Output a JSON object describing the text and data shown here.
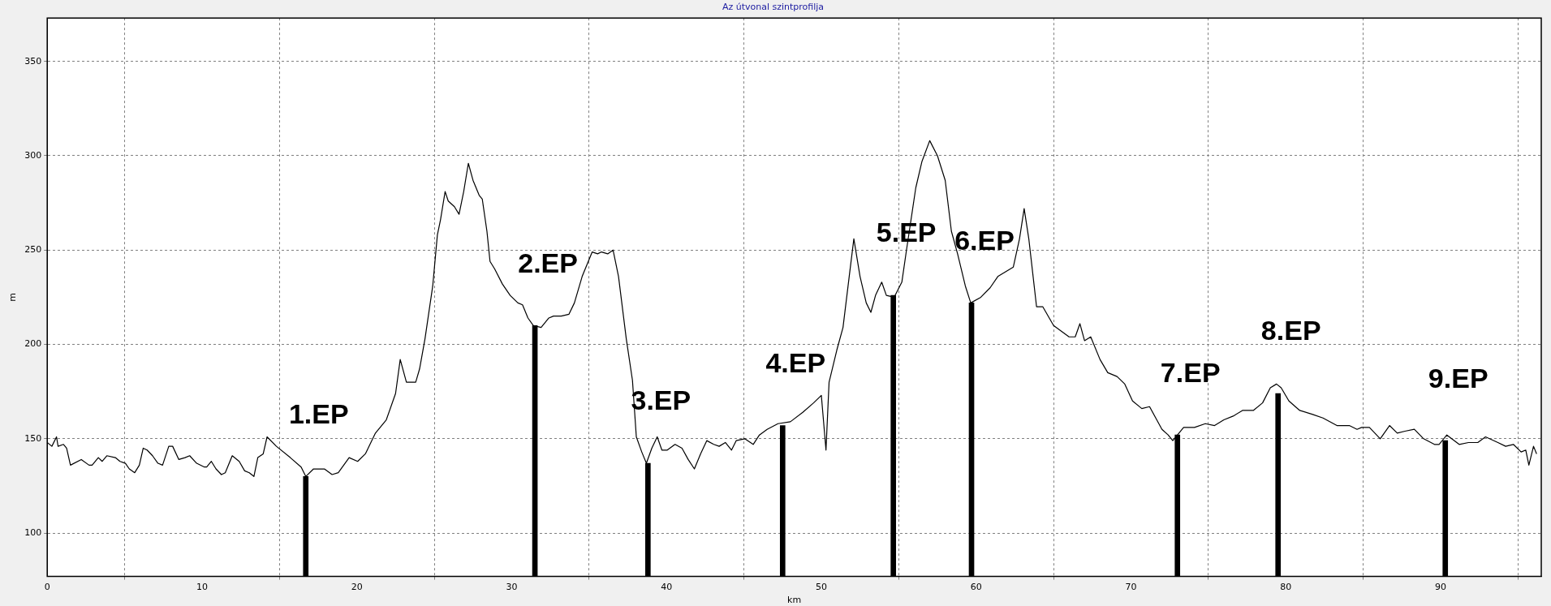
{
  "chart_data": {
    "type": "line",
    "title": "Az útvonal szintprofilja",
    "xlabel": "km",
    "ylabel": "m",
    "xlim": [
      0,
      96.5
    ],
    "ylim": [
      77,
      373
    ],
    "xticks": [
      0,
      10,
      20,
      30,
      40,
      50,
      60,
      70,
      80,
      90
    ],
    "yticks": [
      100,
      150,
      200,
      250,
      300,
      350
    ],
    "grid": true,
    "legend": false,
    "marker": "none",
    "line_style": "solid",
    "series": [
      {
        "color": "#000000",
        "x": [
          0,
          0.3,
          0.6,
          0.7,
          1.05,
          1.25,
          1.5,
          2.2,
          2.7,
          2.9,
          3.3,
          3.55,
          3.85,
          4.4,
          4.7,
          5.05,
          5.3,
          5.65,
          5.95,
          6.2,
          6.45,
          6.8,
          7.15,
          7.45,
          7.85,
          8.1,
          8.5,
          8.9,
          9.2,
          9.65,
          10.15,
          10.3,
          10.6,
          10.9,
          11.25,
          11.5,
          11.95,
          12.4,
          12.75,
          13.05,
          13.35,
          13.6,
          13.95,
          14.2,
          14.8,
          15.7,
          16.4,
          16.7,
          17.2,
          17.9,
          18.4,
          18.8,
          19.5,
          20.05,
          20.55,
          21.2,
          21.9,
          22.5,
          22.8,
          23.2,
          23.8,
          24.05,
          24.4,
          24.9,
          25.2,
          25.4,
          25.7,
          25.9,
          26.3,
          26.6,
          26.9,
          27.2,
          27.5,
          27.9,
          28.1,
          28.4,
          28.6,
          28.9,
          29.4,
          29.9,
          30.4,
          30.7,
          31.05,
          31.4,
          31.9,
          32.4,
          32.7,
          33.2,
          33.7,
          34.05,
          34.55,
          35.2,
          35.55,
          35.8,
          36.2,
          36.55,
          36.9,
          37.4,
          37.8,
          38.05,
          38.4,
          38.7,
          39.05,
          39.4,
          39.7,
          40.05,
          40.55,
          41,
          41.4,
          41.8,
          42.2,
          42.6,
          43.05,
          43.4,
          43.8,
          44.2,
          44.5,
          45.05,
          45.6,
          46,
          46.5,
          47.2,
          48,
          48.8,
          49.5,
          50,
          50.3,
          50.5,
          51,
          51.4,
          51.8,
          52.1,
          52.5,
          52.9,
          53.2,
          53.5,
          53.9,
          54.2,
          54.7,
          55.2,
          55.5,
          56.1,
          56.5,
          57,
          57.5,
          58,
          58.4,
          58.8,
          59.3,
          59.65,
          60.3,
          60.9,
          61.4,
          62.4,
          62.8,
          63.1,
          63.4,
          63.9,
          64.3,
          65,
          66,
          66.4,
          66.7,
          67,
          67.4,
          68,
          68.5,
          69.1,
          69.6,
          70.1,
          70.7,
          71.2,
          71.6,
          72,
          72.4,
          72.7,
          73.4,
          74.1,
          74.8,
          75.4,
          76,
          76.6,
          77.2,
          77.9,
          78.5,
          79,
          79.4,
          79.7,
          80.2,
          80.9,
          81.7,
          82.4,
          83.3,
          84.1,
          84.6,
          84.9,
          85.4,
          86.1,
          86.7,
          87.2,
          87.7,
          88.3,
          88.9,
          89.6,
          89.9,
          90.4,
          91.2,
          91.8,
          92.4,
          92.9,
          93.7,
          94.2,
          94.7,
          95.2,
          95.5,
          95.7,
          96,
          96.2
        ],
        "values": [
          148,
          146,
          151,
          146,
          147,
          145,
          136,
          139,
          136,
          136,
          140,
          138,
          141,
          140,
          138,
          137,
          134,
          132,
          136,
          145,
          144,
          141,
          137,
          136,
          146,
          146,
          139,
          140,
          141,
          137,
          135,
          135,
          138,
          134,
          131,
          132,
          141,
          138,
          133,
          132,
          130,
          140,
          142,
          151,
          146,
          140,
          135,
          130,
          134,
          134,
          131,
          132,
          140,
          138,
          142,
          153,
          160,
          174,
          192,
          180,
          180,
          187,
          203,
          231,
          258,
          266,
          281,
          276,
          273,
          269,
          281,
          296,
          287,
          279,
          277,
          260,
          244,
          240,
          232,
          226,
          222,
          221,
          214,
          210,
          209,
          214,
          215,
          215,
          216,
          222,
          236,
          249,
          248,
          249,
          248,
          250,
          236,
          203,
          181,
          151,
          143,
          137,
          145,
          151,
          144,
          144,
          147,
          145,
          139,
          134,
          142,
          149,
          147,
          146,
          148,
          144,
          149,
          150,
          147,
          152,
          155,
          158,
          159,
          164,
          169,
          173,
          144,
          180,
          197,
          209,
          236,
          256,
          236,
          222,
          217,
          226,
          233,
          226,
          225,
          233,
          250,
          283,
          297,
          308,
          300,
          287,
          260,
          248,
          231,
          222,
          225,
          230,
          236,
          241,
          256,
          272,
          256,
          220,
          220,
          210,
          204,
          204,
          211,
          202,
          204,
          192,
          185,
          183,
          179,
          170,
          166,
          167,
          161,
          155,
          152,
          149,
          156,
          156,
          158,
          157,
          160,
          162,
          165,
          165,
          169,
          177,
          179,
          177,
          170,
          165,
          163,
          161,
          157,
          157,
          155,
          156,
          156,
          150,
          157,
          153,
          154,
          155,
          150,
          147,
          147,
          152,
          147,
          148,
          148,
          151,
          148,
          146,
          147,
          143,
          144,
          136,
          146,
          142
        ]
      },
      {
        "type": "bar",
        "color": "#000000",
        "x": [
          16.7,
          31.5,
          38.8,
          47.5,
          54.65,
          59.7,
          73,
          79.5,
          90.3
        ],
        "values": [
          130,
          210,
          137,
          157,
          226,
          222,
          152,
          174,
          149
        ]
      }
    ],
    "annotations": [
      {
        "text": "1.EP",
        "x": 16.7,
        "y": 130
      },
      {
        "text": "2.EP",
        "x": 31.5,
        "y": 210
      },
      {
        "text": "3.EP",
        "x": 38.8,
        "y": 137
      },
      {
        "text": "4.EP",
        "x": 47.5,
        "y": 157
      },
      {
        "text": "5.EP",
        "x": 54.65,
        "y": 226
      },
      {
        "text": "6.EP",
        "x": 59.7,
        "y": 222
      },
      {
        "text": "7.EP",
        "x": 73,
        "y": 152
      },
      {
        "text": "8.EP",
        "x": 79.5,
        "y": 174
      },
      {
        "text": "9.EP",
        "x": 90.3,
        "y": 149
      }
    ]
  }
}
